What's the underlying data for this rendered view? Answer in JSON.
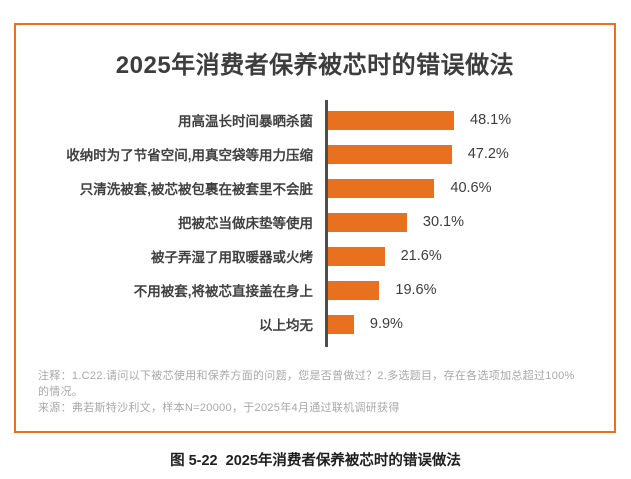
{
  "figure": {
    "title": "2025年消费者保养被芯时的错误做法",
    "caption": "图 5-22  2025年消费者保养被芯时的错误做法",
    "notes": {
      "lines": [
        "注释：1.C22.请问以下被芯使用和保养方面的问题，您是否曾做过？2.多选题目，存在各选项加总超过100%",
        "的情况。",
        "来源：弗若斯特沙利文，样本N=20000，于2025年4月通过联机调研获得"
      ]
    },
    "colors": {
      "bar": "#E8711F",
      "border": "#E8711F",
      "axis": "#4D4D4D"
    }
  },
  "chart_data": {
    "type": "bar",
    "orientation": "horizontal",
    "title": "2025年消费者保养被芯时的错误做法",
    "categories": [
      "用高温长时间暴晒杀菌",
      "收纳时为了节省空间,用真空袋等用力压缩",
      "只清洗被套,被芯被包裹在被套里不会脏",
      "把被芯当做床垫等使用",
      "被子弄湿了用取暖器或火烤",
      "不用被套,将被芯直接盖在身上",
      "以上均无"
    ],
    "values": [
      48.1,
      47.2,
      40.6,
      30.1,
      21.6,
      19.6,
      9.9
    ],
    "value_labels": [
      "48.1%",
      "47.2%",
      "40.6%",
      "30.1%",
      "21.6%",
      "19.6%",
      "9.9%"
    ],
    "unit": "%",
    "value_axis_visible": false,
    "gridlines": false,
    "legend": false,
    "data_labels_position": "outside-end"
  }
}
